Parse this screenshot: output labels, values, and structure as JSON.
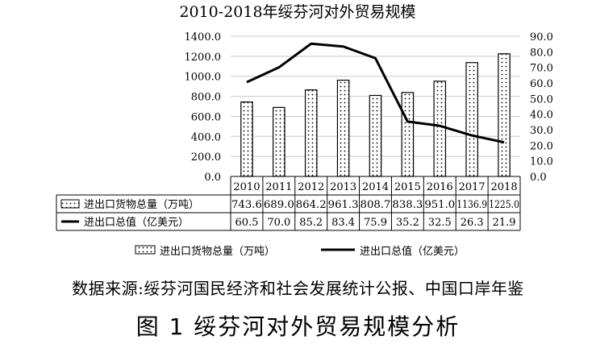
{
  "chart_data": {
    "type": "bar",
    "title": "2010-2018年绥芬河对外贸易规模",
    "categories": [
      "2010",
      "2011",
      "2012",
      "2013",
      "2014",
      "2015",
      "2016",
      "2017",
      "2018"
    ],
    "series": [
      {
        "name": "进出口货物总量（万吨）",
        "type": "bar",
        "axis": "left",
        "values": [
          743.6,
          689.0,
          864.2,
          961.3,
          808.7,
          838.3,
          951.0,
          1136.9,
          1225.0
        ],
        "labels": [
          "743.6",
          "689.0",
          "864.2",
          "961.3",
          "808.7",
          "838.3",
          "951.0",
          "1136.9",
          "1225.0"
        ]
      },
      {
        "name": "进出口总值（亿美元）",
        "type": "line",
        "axis": "right",
        "values": [
          60.5,
          70.0,
          85.2,
          83.4,
          75.9,
          35.2,
          32.5,
          26.3,
          21.9
        ],
        "labels": [
          "60.5",
          "70.0",
          "85.2",
          "83.4",
          "75.9",
          "35.2",
          "32.5",
          "26.3",
          "21.9"
        ]
      }
    ],
    "y_left": {
      "ylim": [
        0,
        1400
      ],
      "ticks": [
        "0.0",
        "200.0",
        "400.0",
        "600.0",
        "800.0",
        "1000.0",
        "1200.0",
        "1400.0"
      ]
    },
    "y_right": {
      "ylim": [
        0,
        90
      ],
      "ticks": [
        "0.0",
        "10.0",
        "20.0",
        "30.0",
        "40.0",
        "50.0",
        "60.0",
        "70.0",
        "80.0",
        "90.0"
      ]
    },
    "grid": true,
    "legend": "bottom",
    "data_table": true
  },
  "source_note": "数据来源:绥芬河国民经济和社会发展统计公报、中国口岸年鉴",
  "figure_caption": "图 1  绥芬河对外贸易规模分析"
}
